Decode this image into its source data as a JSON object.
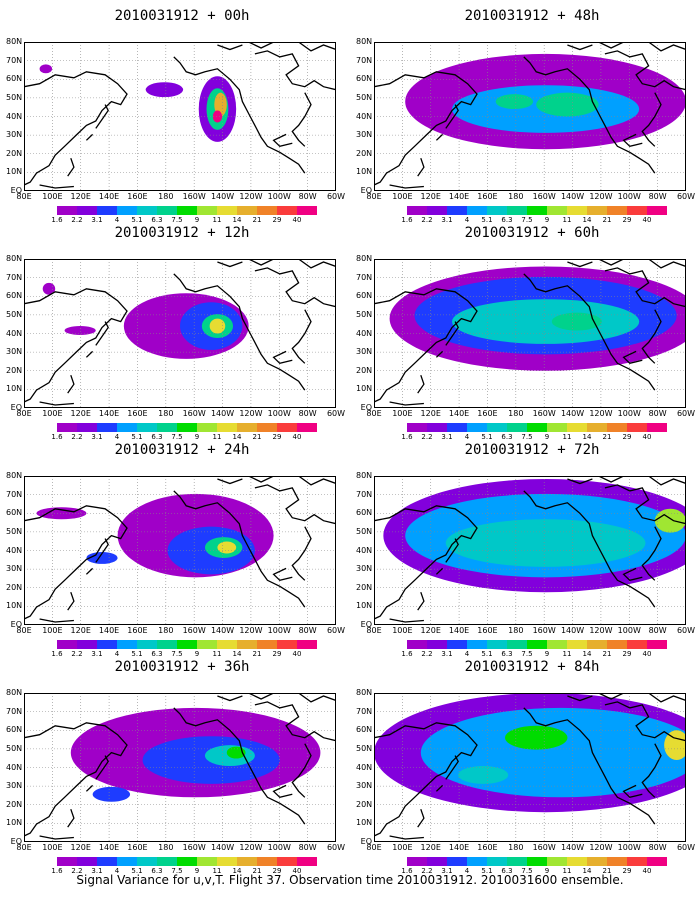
{
  "panels": [
    {
      "title": "2010031912 + 00h",
      "intensity": 0
    },
    {
      "title": "2010031912 + 48h",
      "intensity": 4
    },
    {
      "title": "2010031912 + 12h",
      "intensity": 1
    },
    {
      "title": "2010031912 + 60h",
      "intensity": 5
    },
    {
      "title": "2010031912 + 24h",
      "intensity": 2
    },
    {
      "title": "2010031912 + 72h",
      "intensity": 6
    },
    {
      "title": "2010031912 + 36h",
      "intensity": 3
    },
    {
      "title": "2010031912 + 84h",
      "intensity": 7
    }
  ],
  "lat_labels": [
    "80N",
    "70N",
    "60N",
    "50N",
    "40N",
    "30N",
    "20N",
    "10N",
    "EQ"
  ],
  "lon_labels": [
    "80E",
    "100E",
    "120E",
    "140E",
    "160E",
    "180",
    "160W",
    "140W",
    "120W",
    "100W",
    "80W",
    "60W"
  ],
  "colorbar": {
    "labels": [
      "1.6",
      "2.2",
      "3.1",
      "4",
      "5.1",
      "6.3",
      "7.5",
      "9",
      "11",
      "14",
      "21",
      "29",
      "40"
    ],
    "colors": [
      "#a000c8",
      "#8200dc",
      "#1e3cff",
      "#00a0ff",
      "#00c8c8",
      "#00d28c",
      "#00dc00",
      "#a0e632",
      "#e6dc32",
      "#e6af2d",
      "#f08228",
      "#fa3c3c",
      "#f00082"
    ]
  },
  "caption": "Signal Variance for u,v,T. Flight 37. Observation time 2010031912. 2010031600 ensemble."
}
